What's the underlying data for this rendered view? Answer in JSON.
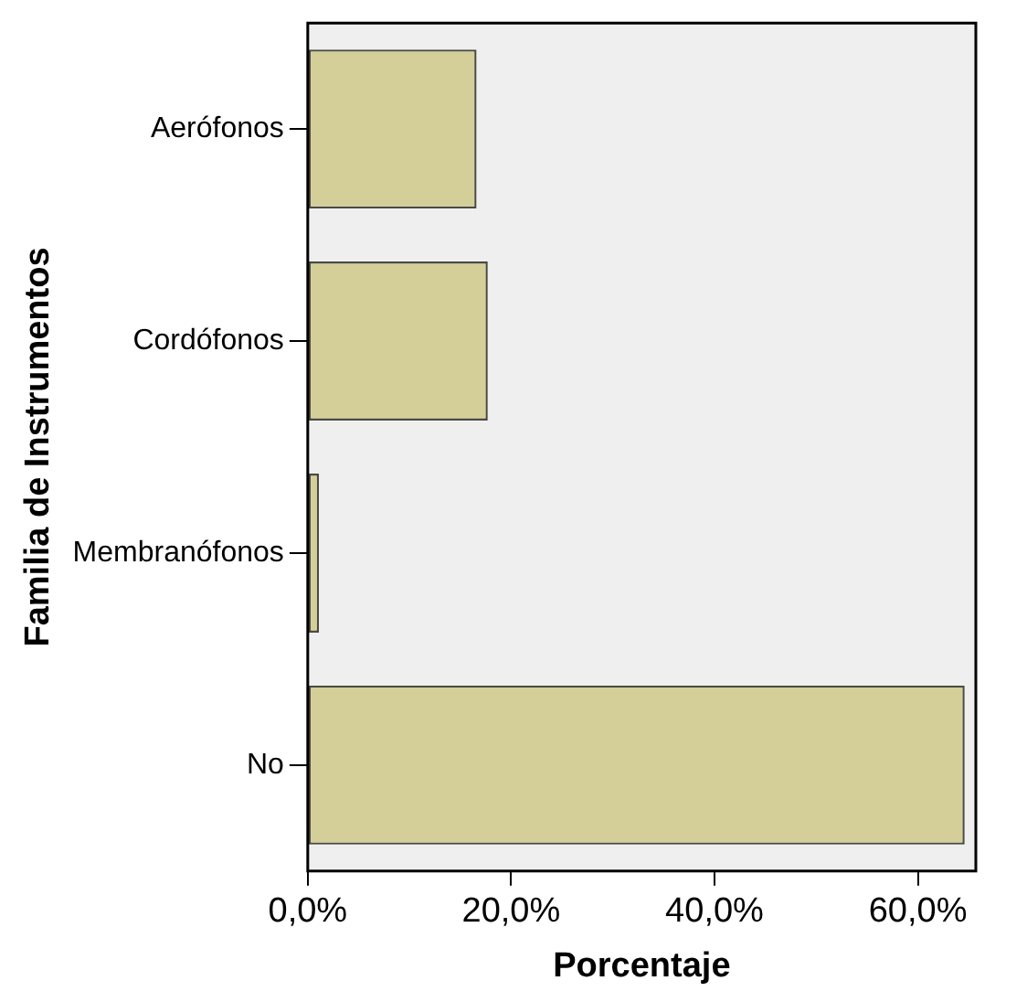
{
  "chart_data": {
    "type": "bar",
    "orientation": "horizontal",
    "categories": [
      "Aerófonos",
      "Cordófonos",
      "Membranófonos",
      "No"
    ],
    "values": [
      16.6,
      17.7,
      1.1,
      64.6
    ],
    "color": "#d4cf98",
    "xlim": [
      0,
      65.7
    ],
    "xticks": [
      {
        "value": 0,
        "label": "0,0%"
      },
      {
        "value": 20,
        "label": "20,0%"
      },
      {
        "value": 40,
        "label": "40,0%"
      },
      {
        "value": 60,
        "label": "60,0%"
      }
    ],
    "xlabel": "Porcentaje",
    "ylabel": "Familia de Instrumentos",
    "grid": false,
    "legend": false
  }
}
